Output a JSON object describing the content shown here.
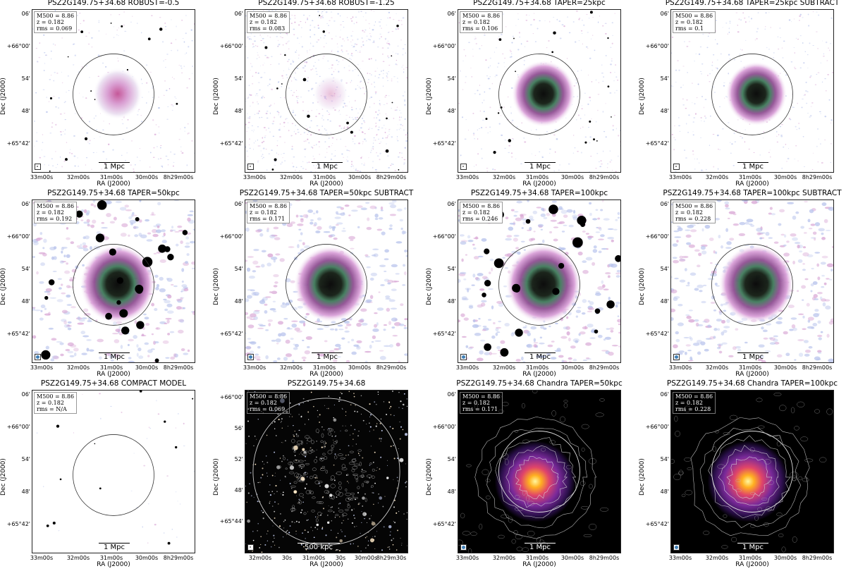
{
  "figure": {
    "ra_ticks_standard": [
      "33m00s",
      "32m00s",
      "31m00s",
      "30m00s",
      "8h29m00s"
    ],
    "dec_ticks_standard": [
      "06'",
      "+66°00'",
      "54'",
      "48'",
      "+65°42'"
    ],
    "ra_ticks_optical": [
      "32m00s",
      "30s",
      "31m00s",
      "30s",
      "30m00s",
      "8h29m30s"
    ],
    "dec_ticks_optical": [
      "+66°00'",
      "56'",
      "52'",
      "48'",
      "+65°44'"
    ],
    "xlabel": "RA (J2000)",
    "ylabel": "Dec (J2000)"
  },
  "panels": [
    {
      "title": "PSZ2G149.75+34.68 ROBUST=-0.5",
      "m500": "M500 = 8.86",
      "z": "z = 0.182",
      "rms": "rms = 0.069",
      "scale": "1 Mpc",
      "style": "radio",
      "beam": "small",
      "intensity": 0.45
    },
    {
      "title": "PSZ2G149.75+34.68 ROBUST=-1.25",
      "m500": "M500 = 8.86",
      "z": "z = 0.182",
      "rms": "rms = 0.083",
      "scale": "1 Mpc",
      "style": "radio-faint",
      "beam": "small",
      "intensity": 0.15
    },
    {
      "title": "PSZ2G149.75+34.68 TAPER=25kpc",
      "m500": "M500 = 8.86",
      "z": "z = 0.182",
      "rms": "rms = 0.106",
      "scale": "1 Mpc",
      "style": "radio",
      "beam": "small",
      "intensity": 0.75
    },
    {
      "title": "PSZ2G149.75+34.68 TAPER=25kpc SUBTRACT",
      "m500": "M500 = 8.86",
      "z": "z = 0.182",
      "rms": "rms = 0.1",
      "scale": "1 Mpc",
      "style": "radio-sub",
      "beam": "small",
      "intensity": 0.7
    },
    {
      "title": "PSZ2G149.75+34.68 TAPER=50kpc",
      "m500": "M500 = 8.86",
      "z": "z = 0.182",
      "rms": "rms = 0.192",
      "scale": "1 Mpc",
      "style": "radio",
      "beam": "big",
      "intensity": 1.0
    },
    {
      "title": "PSZ2G149.75+34.68 TAPER=50kpc SUBTRACT",
      "m500": "M500 = 8.86",
      "z": "z = 0.182",
      "rms": "rms = 0.171",
      "scale": "1 Mpc",
      "style": "radio-sub",
      "beam": "big",
      "intensity": 0.95
    },
    {
      "title": "PSZ2G149.75+34.68 TAPER=100kpc",
      "m500": "M500 = 8.86",
      "z": "z = 0.182",
      "rms": "rms = 0.246",
      "scale": "1 Mpc",
      "style": "radio",
      "beam": "big",
      "intensity": 1.0
    },
    {
      "title": "PSZ2G149.75+34.68 TAPER=100kpc SUBTRACT",
      "m500": "M500 = 8.86",
      "z": "z = 0.182",
      "rms": "rms = 0.228",
      "scale": "1 Mpc",
      "style": "radio-sub",
      "beam": "big",
      "intensity": 1.0
    },
    {
      "title": "PSZ2G149.75+34.68 COMPACT MODEL",
      "m500": "M500 = 8.86",
      "z": "z = 0.182",
      "rms": "rms = N/A",
      "scale": "1 Mpc",
      "style": "compact",
      "beam": "none",
      "intensity": 0.1
    },
    {
      "title": "PSZ2G149.75+34.68",
      "m500": "M500 = 8.86",
      "z": "z = 0.182",
      "rms": "rms = 0.069",
      "scale": "500 kpc",
      "style": "optical",
      "beam": "tiny",
      "intensity": 0.5
    },
    {
      "title": "PSZ2G149.75+34.68 Chandra TAPER=50kpc",
      "m500": "M500 = 8.86",
      "z": "z = 0.182",
      "rms": "rms = 0.171",
      "scale": "1 Mpc",
      "style": "xray",
      "beam": "big",
      "intensity": 0.9
    },
    {
      "title": "PSZ2G149.75+34.68 Chandra TAPER=100kpc",
      "m500": "M500 = 8.86",
      "z": "z = 0.182",
      "rms": "rms = 0.228",
      "scale": "1 Mpc",
      "style": "xray",
      "beam": "big",
      "intensity": 1.0
    }
  ]
}
